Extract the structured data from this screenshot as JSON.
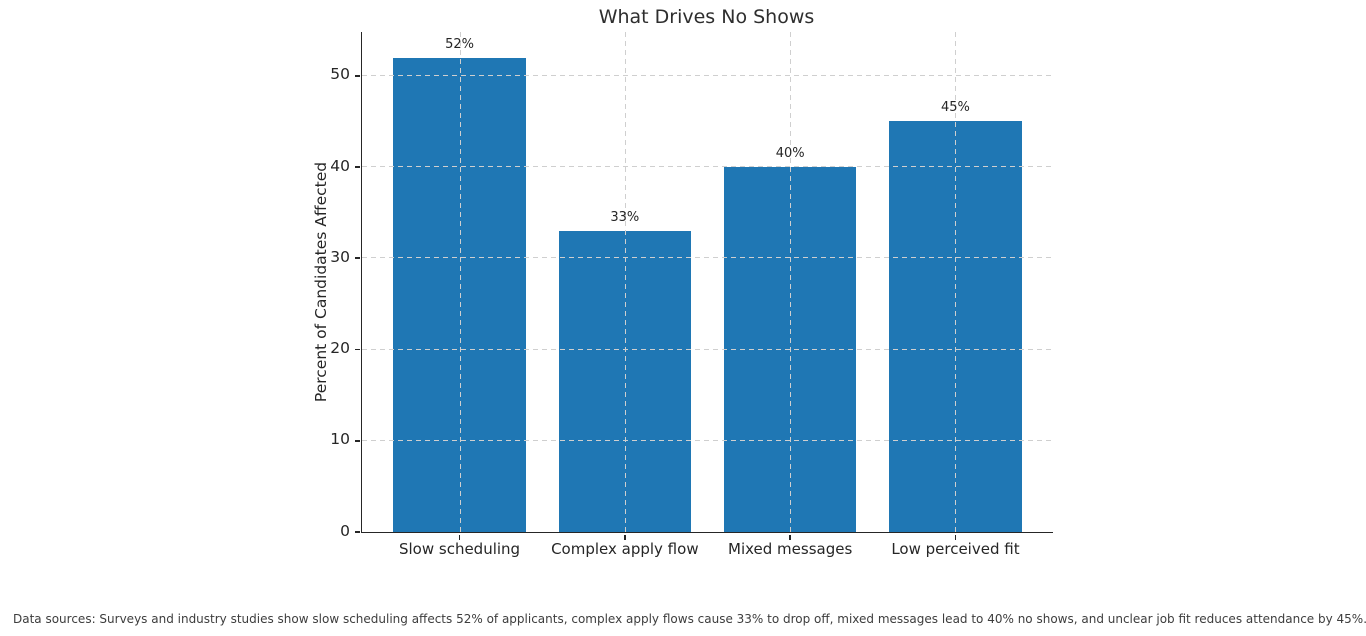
{
  "chart_data": {
    "type": "bar",
    "title": "What Drives No Shows",
    "categories": [
      "Slow scheduling",
      "Complex apply flow",
      "Mixed messages",
      "Low perceived fit"
    ],
    "values": [
      52,
      33,
      40,
      45
    ],
    "value_labels": [
      "52%",
      "33%",
      "40%",
      "45%"
    ],
    "xlabel": "",
    "ylabel": "Percent of Candidates Affected",
    "yticks": [
      0,
      10,
      20,
      30,
      40,
      50
    ],
    "ylim": [
      0,
      54.8
    ],
    "bar_color": "#1f77b4",
    "grid": "dashed gray gridlines, horizontal at each y tick and vertical at each category, drawn above bars",
    "legend": "none"
  },
  "footer": {
    "note": "Data sources: Surveys and industry studies show slow scheduling affects 52% of applicants, complex apply flows cause 33% to drop off, mixed messages lead to 40% no shows, and unclear job fit reduces attendance by 45%."
  }
}
